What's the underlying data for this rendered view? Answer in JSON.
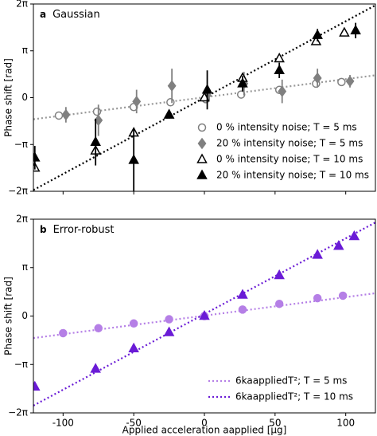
{
  "chart_data": [
    {
      "type": "scatter",
      "panel_label": "a",
      "title": "Gaussian",
      "ylabel": "Phase shift [rad]",
      "xlim": [
        -121,
        121
      ],
      "xticks": [
        -100,
        -50,
        0,
        50,
        100
      ],
      "ylim": [
        -6.283,
        6.283
      ],
      "yticks": [
        {
          "value": -6.283,
          "label": "−2π"
        },
        {
          "value": -3.1416,
          "label": "−π"
        },
        0,
        {
          "value": 3.1416,
          "label": "π"
        },
        {
          "value": 6.283,
          "label": "2π"
        }
      ],
      "legend": "lower right",
      "series": [
        {
          "style": "dotted",
          "color": "#999999",
          "x": [
            -121,
            121
          ],
          "values": [
            -1.45,
            1.5
          ]
        },
        {
          "style": "dotted",
          "color": "#000000",
          "x": [
            -121,
            121
          ],
          "values": [
            -6.2,
            6.2
          ]
        },
        {
          "name": "0 % intensity noise; T = 5 ms",
          "marker": "circle",
          "filled": false,
          "color": "#808080",
          "x": [
            -103,
            -76,
            -50,
            -24,
            1,
            26,
            53,
            79,
            97
          ],
          "values": [
            -1.2,
            -0.94,
            -0.63,
            -0.31,
            -0.1,
            0.21,
            0.52,
            0.94,
            1.05
          ]
        },
        {
          "name": "20 % intensity noise; T = 5 ms",
          "marker": "diamond",
          "filled": true,
          "color": "#808080",
          "x": [
            -98,
            -75,
            -48,
            -23,
            2,
            28,
            55,
            80,
            103
          ],
          "values": [
            -1.15,
            -1.52,
            -0.26,
            0.79,
            0.16,
            0.94,
            0.42,
            1.31,
            1.1
          ],
          "errors": [
            0.52,
            1.05,
            0.79,
            1.15,
            0.52,
            0.79,
            0.79,
            0.63,
            0.42
          ]
        },
        {
          "name": "0 % intensity noise; T = 10 ms",
          "marker": "triangle",
          "filled": false,
          "color": "#000000",
          "x": [
            -120,
            -77,
            -50,
            -25,
            0,
            27,
            53,
            79,
            99
          ],
          "values": [
            -4.71,
            -3.56,
            -2.36,
            -1.15,
            0,
            1.31,
            2.62,
            3.77,
            4.35
          ]
        },
        {
          "name": "20 % intensity noise; T = 10 ms",
          "marker": "triangle",
          "filled": true,
          "color": "#000000",
          "x": [
            -120,
            -77,
            -50,
            -25,
            2,
            27,
            53,
            80,
            107
          ],
          "values": [
            -4.03,
            -2.98,
            -4.19,
            -1.15,
            0.52,
            0.94,
            1.83,
            4.19,
            4.5
          ],
          "errors": [
            0.79,
            1.57,
            2.09,
            0.26,
            1.31,
            0.52,
            0.52,
            0.42,
            0.52
          ]
        }
      ]
    },
    {
      "type": "scatter",
      "panel_label": "b",
      "title": "Error-robust",
      "ylabel": "Phase shift [rad]",
      "xlabel": "Applied acceleration aapplied [μg]",
      "xlim": [
        -121,
        121
      ],
      "xticks": [
        -100,
        -50,
        0,
        50,
        100
      ],
      "ylim": [
        -6.283,
        6.283
      ],
      "yticks": [
        {
          "value": -6.283,
          "label": "−2π"
        },
        {
          "value": -3.1416,
          "label": "−π"
        },
        0,
        {
          "value": 3.1416,
          "label": "π"
        },
        {
          "value": 6.283,
          "label": "2π"
        }
      ],
      "legend": "lower right",
      "series": [
        {
          "name": "6kaappliedT²; T = 5 ms",
          "style": "dotted",
          "color": "#b57fe6",
          "x": [
            -121,
            121
          ],
          "values": [
            -1.43,
            1.48
          ]
        },
        {
          "name": "6kaappliedT²; T = 10 ms",
          "style": "dotted",
          "color": "#6a1bd6",
          "x": [
            -121,
            121
          ],
          "values": [
            -5.81,
            6.07
          ]
        },
        {
          "marker": "circle",
          "filled": true,
          "color": "#b57fe6",
          "x": [
            -100,
            -75,
            -50,
            -25,
            0,
            27,
            53,
            80,
            98
          ],
          "values": [
            -1.11,
            -0.79,
            -0.48,
            -0.21,
            0,
            0.42,
            0.79,
            1.16,
            1.32
          ]
        },
        {
          "marker": "triangle",
          "filled": true,
          "color": "#6a1bd6",
          "x": [
            -120,
            -77,
            -50,
            -25,
            0,
            27,
            53,
            80,
            95,
            106
          ],
          "values": [
            -4.59,
            -3.43,
            -2.11,
            -1.06,
            0,
            1.37,
            2.64,
            3.96,
            4.54,
            5.17
          ]
        }
      ]
    }
  ]
}
